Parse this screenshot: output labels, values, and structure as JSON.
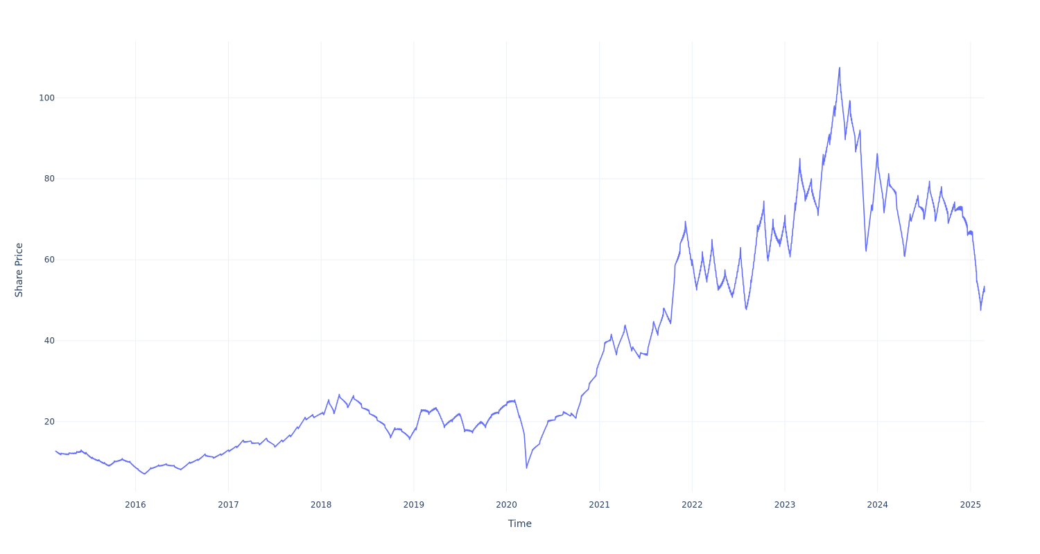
{
  "chart_data": {
    "type": "line",
    "title": "",
    "xlabel": "Time",
    "ylabel": "Share Price",
    "xlim": [
      "2015-02-20",
      "2025-02-25"
    ],
    "ylim": [
      2.7,
      113.9
    ],
    "grid": true,
    "x_ticks": [
      "2016",
      "2017",
      "2018",
      "2019",
      "2020",
      "2021",
      "2022",
      "2023",
      "2024",
      "2025"
    ],
    "y_ticks": [
      20,
      40,
      60,
      80,
      100
    ],
    "colors": {
      "line": "#636efa",
      "grid": "#ebf0f8",
      "text": "#2a3f5f"
    },
    "series": [
      {
        "points": [
          [
            "2015-02-20",
            12.8
          ],
          [
            "2015-03-15",
            12.2
          ],
          [
            "2015-04-15",
            12.3
          ],
          [
            "2015-05-15",
            12.6
          ],
          [
            "2015-06-01",
            13.0
          ],
          [
            "2015-06-20",
            12.4
          ],
          [
            "2015-07-15",
            11.2
          ],
          [
            "2015-08-10",
            10.6
          ],
          [
            "2015-09-01",
            9.9
          ],
          [
            "2015-09-20",
            9.3
          ],
          [
            "2015-10-10",
            10.3
          ],
          [
            "2015-11-10",
            10.9
          ],
          [
            "2015-12-10",
            10.2
          ],
          [
            "2016-01-10",
            8.4
          ],
          [
            "2016-02-05",
            7.2
          ],
          [
            "2016-03-01",
            8.6
          ],
          [
            "2016-04-01",
            9.3
          ],
          [
            "2016-05-01",
            9.6
          ],
          [
            "2016-06-01",
            9.2
          ],
          [
            "2016-06-25",
            8.3
          ],
          [
            "2016-08-01",
            10.0
          ],
          [
            "2016-09-01",
            10.7
          ],
          [
            "2016-10-01",
            12.0
          ],
          [
            "2016-11-01",
            11.3
          ],
          [
            "2016-12-01",
            12.0
          ],
          [
            "2017-01-01",
            13.0
          ],
          [
            "2017-02-01",
            13.9
          ],
          [
            "2017-03-01",
            15.4
          ],
          [
            "2017-04-01",
            15.1
          ],
          [
            "2017-05-01",
            14.6
          ],
          [
            "2017-06-01",
            15.8
          ],
          [
            "2017-07-01",
            14.0
          ],
          [
            "2017-08-01",
            15.3
          ],
          [
            "2017-09-01",
            16.5
          ],
          [
            "2017-10-01",
            18.5
          ],
          [
            "2017-11-01",
            20.8
          ],
          [
            "2017-12-01",
            21.3
          ],
          [
            "2018-01-10",
            21.8
          ],
          [
            "2018-02-01",
            25.0
          ],
          [
            "2018-02-20",
            22.0
          ],
          [
            "2018-03-15",
            26.3
          ],
          [
            "2018-04-15",
            23.5
          ],
          [
            "2018-05-10",
            25.8
          ],
          [
            "2018-06-10",
            23.5
          ],
          [
            "2018-07-10",
            22.0
          ],
          [
            "2018-08-10",
            20.3
          ],
          [
            "2018-09-10",
            18.5
          ],
          [
            "2018-10-01",
            16.0
          ],
          [
            "2018-10-20",
            18.0
          ],
          [
            "2018-11-15",
            17.5
          ],
          [
            "2018-12-15",
            15.6
          ],
          [
            "2019-01-10",
            18.0
          ],
          [
            "2019-02-01",
            22.5
          ],
          [
            "2019-03-01",
            21.8
          ],
          [
            "2019-04-01",
            22.8
          ],
          [
            "2019-05-01",
            18.5
          ],
          [
            "2019-06-01",
            20.0
          ],
          [
            "2019-07-01",
            21.5
          ],
          [
            "2019-07-20",
            17.5
          ],
          [
            "2019-08-20",
            17.2
          ],
          [
            "2019-09-20",
            19.5
          ],
          [
            "2019-10-10",
            18.5
          ],
          [
            "2019-11-01",
            21.0
          ],
          [
            "2019-12-01",
            22.0
          ],
          [
            "2020-01-01",
            24.0
          ],
          [
            "2020-02-01",
            24.8
          ],
          [
            "2020-02-20",
            21.0
          ],
          [
            "2020-03-10",
            17.0
          ],
          [
            "2020-03-20",
            8.5
          ],
          [
            "2020-04-10",
            12.5
          ],
          [
            "2020-05-10",
            14.5
          ],
          [
            "2020-06-10",
            19.5
          ],
          [
            "2020-07-10",
            20.5
          ],
          [
            "2020-08-10",
            21.8
          ],
          [
            "2020-09-10",
            21.5
          ],
          [
            "2020-10-01",
            21.0
          ],
          [
            "2020-10-20",
            25.5
          ],
          [
            "2020-11-20",
            28.5
          ],
          [
            "2020-12-20",
            32.0
          ],
          [
            "2021-01-20",
            38.5
          ],
          [
            "2021-02-15",
            41.0
          ],
          [
            "2021-03-10",
            37.0
          ],
          [
            "2021-04-10",
            43.5
          ],
          [
            "2021-05-10",
            38.0
          ],
          [
            "2021-06-10",
            36.5
          ],
          [
            "2021-07-10",
            37.5
          ],
          [
            "2021-08-01",
            44.5
          ],
          [
            "2021-08-20",
            42.5
          ],
          [
            "2021-09-10",
            48.0
          ],
          [
            "2021-10-10",
            45.5
          ],
          [
            "2021-10-25",
            58.5
          ],
          [
            "2021-11-15",
            64.0
          ],
          [
            "2021-12-05",
            69.5
          ],
          [
            "2022-01-01",
            60.0
          ],
          [
            "2022-01-20",
            54.0
          ],
          [
            "2022-02-10",
            62.0
          ],
          [
            "2022-03-01",
            56.0
          ],
          [
            "2022-03-20",
            65.0
          ],
          [
            "2022-04-15",
            53.5
          ],
          [
            "2022-05-10",
            57.5
          ],
          [
            "2022-06-10",
            52.0
          ],
          [
            "2022-07-10",
            63.0
          ],
          [
            "2022-08-01",
            48.5
          ],
          [
            "2022-08-20",
            55.0
          ],
          [
            "2022-09-15",
            68.5
          ],
          [
            "2022-10-10",
            74.5
          ],
          [
            "2022-10-25",
            61.0
          ],
          [
            "2022-11-15",
            70.0
          ],
          [
            "2022-12-10",
            65.0
          ],
          [
            "2023-01-01",
            71.0
          ],
          [
            "2023-01-20",
            62.0
          ],
          [
            "2023-02-10",
            74.0
          ],
          [
            "2023-03-01",
            85.0
          ],
          [
            "2023-03-20",
            77.0
          ],
          [
            "2023-04-15",
            80.0
          ],
          [
            "2023-05-10",
            72.5
          ],
          [
            "2023-06-01",
            86.0
          ],
          [
            "2023-06-25",
            91.0
          ],
          [
            "2023-07-15",
            98.0
          ],
          [
            "2023-08-05",
            107.5
          ],
          [
            "2023-08-25",
            92.0
          ],
          [
            "2023-09-15",
            99.0
          ],
          [
            "2023-10-05",
            89.0
          ],
          [
            "2023-10-25",
            91.0
          ],
          [
            "2023-11-15",
            63.0
          ],
          [
            "2023-12-10",
            73.0
          ],
          [
            "2024-01-01",
            85.5
          ],
          [
            "2024-01-25",
            72.5
          ],
          [
            "2024-02-15",
            80.0
          ],
          [
            "2024-03-15",
            74.5
          ],
          [
            "2024-04-15",
            61.0
          ],
          [
            "2024-05-10",
            70.0
          ],
          [
            "2024-06-10",
            74.0
          ],
          [
            "2024-07-01",
            70.0
          ],
          [
            "2024-07-25",
            77.5
          ],
          [
            "2024-08-15",
            69.5
          ],
          [
            "2024-09-10",
            76.0
          ],
          [
            "2024-10-05",
            69.0
          ],
          [
            "2024-11-01",
            72.0
          ],
          [
            "2024-12-01",
            70.5
          ],
          [
            "2024-12-20",
            66.0
          ],
          [
            "2025-01-10",
            64.5
          ],
          [
            "2025-01-25",
            54.5
          ],
          [
            "2025-02-10",
            47.5
          ],
          [
            "2025-02-25",
            52.0
          ]
        ]
      }
    ]
  }
}
